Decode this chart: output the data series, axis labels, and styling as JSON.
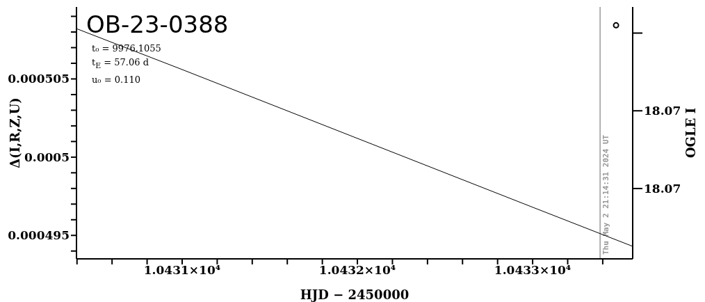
{
  "chart_data": {
    "type": "line",
    "title": "OB-23-0388",
    "xlabel": "HJD − 2450000",
    "ylabel": "Δ(I,R,Z,U)",
    "y2label": "OGLE I",
    "annotations": [
      "t₀ = 9976.1055",
      "t$_{E}$ = 57.06 d",
      "u₀ = 0.110",
      "Thu May 2 21:14:31 2024 UT"
    ],
    "xlim": [
      10430.397,
      10433.571
    ],
    "xticks": [
      {
        "value": 10430.4,
        "label": null
      },
      {
        "value": 10430.6,
        "label": null
      },
      {
        "value": 10430.8,
        "label": null
      },
      {
        "value": 10431,
        "label": "1.0431×10⁴"
      },
      {
        "value": 10431.2,
        "label": null
      },
      {
        "value": 10431.4,
        "label": null
      },
      {
        "value": 10431.6,
        "label": null
      },
      {
        "value": 10431.8,
        "label": null
      },
      {
        "value": 10432,
        "label": "1.0432×10⁴"
      },
      {
        "value": 10432.2,
        "label": null
      },
      {
        "value": 10432.4,
        "label": null
      },
      {
        "value": 10432.6,
        "label": null
      },
      {
        "value": 10432.8,
        "label": null
      },
      {
        "value": 10433,
        "label": "1.0433×10⁴"
      },
      {
        "value": 10433.2,
        "label": null
      },
      {
        "value": 10433.4,
        "label": null
      }
    ],
    "ylim": [
      0.0004935,
      0.0005096
    ],
    "yticks": [
      {
        "value": 0.000494,
        "label": null
      },
      0.000495,
      {
        "value": 0.000496,
        "label": null
      },
      {
        "value": 0.000497,
        "label": null
      },
      {
        "value": 0.000498,
        "label": null
      },
      {
        "value": 0.000499,
        "label": null
      },
      0.0005,
      {
        "value": 0.000501,
        "label": null
      },
      {
        "value": 0.000502,
        "label": null
      },
      {
        "value": 0.000503,
        "label": null
      },
      {
        "value": 0.000504,
        "label": null
      },
      0.000505,
      {
        "value": 0.000506,
        "label": null
      },
      {
        "value": 0.000507,
        "label": null
      },
      {
        "value": 0.000508,
        "label": null
      },
      {
        "value": 0.000509,
        "label": null
      }
    ],
    "y2lim": [
      18.068095,
      18.071336
    ],
    "y2ticks": [
      {
        "value": 18.069,
        "label": "18.07"
      },
      {
        "value": 18.07,
        "label": "18.07"
      },
      {
        "value": 18.071,
        "label": null
      }
    ],
    "series": [
      {
        "color": "#000000",
        "x": [
          10430.4,
          10431.0,
          10431.5,
          10432.0,
          10432.5,
          10433.0,
          10433.571
        ],
        "values": [
          0.0005082,
          0.0005056,
          0.0005034,
          0.0005012,
          0.000499,
          0.0004968,
          0.0004943
        ]
      },
      {
        "type": "scatter",
        "axis": "y2",
        "color": "#000000",
        "marker": "circle",
        "x": [
          10433.476
        ],
        "values": [
          18.0711
        ]
      }
    ],
    "ref_lines": [
      {
        "axis": "x",
        "value": 10433.385,
        "color": "#999999"
      }
    ],
    "grid": false,
    "legend": false
  }
}
